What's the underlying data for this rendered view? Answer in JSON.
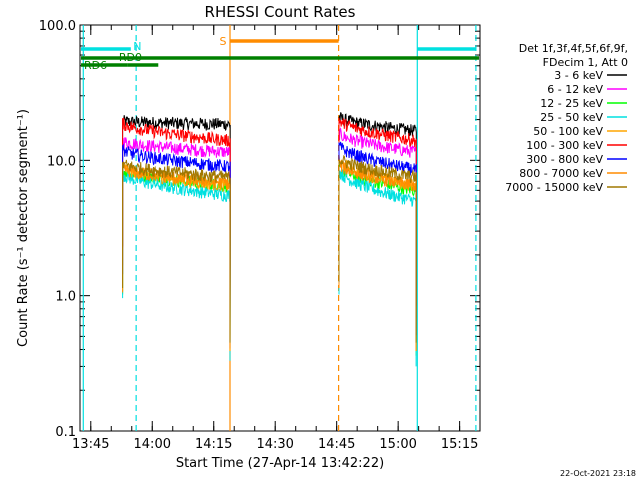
{
  "chart_data": {
    "type": "line",
    "title": "RHESSI Count Rates",
    "xlabel": "Start Time (27-Apr-14 13:42:22)",
    "ylabel": "Count Rate (s⁻¹ detector segment⁻¹)",
    "x_unit": "minutes after 13:42:22",
    "xlim": [
      0,
      97.6
    ],
    "ylim": [
      0.1,
      100
    ],
    "y_scale": "log",
    "x_ticks": [
      {
        "label": "13:45",
        "value": 2.63
      },
      {
        "label": "14:00",
        "value": 17.63
      },
      {
        "label": "14:15",
        "value": 32.63
      },
      {
        "label": "14:30",
        "value": 47.63
      },
      {
        "label": "14:45",
        "value": 62.63
      },
      {
        "label": "15:00",
        "value": 77.63
      },
      {
        "label": "15:15",
        "value": 92.63
      }
    ],
    "y_ticks": [
      {
        "label": "0.1",
        "value": 0.1
      },
      {
        "label": "1.0",
        "value": 1
      },
      {
        "label": "10.0",
        "value": 10
      },
      {
        "label": "100.0",
        "value": 100
      }
    ],
    "legend_header": [
      "Det 1f,3f,4f,5f,6f,9f,",
      "FDecim 1, Att 0"
    ],
    "legend_placement": "right",
    "series": [
      {
        "name": "3 - 6 keV",
        "color": "#000000",
        "seg1": [
          19.5,
          18.5
        ],
        "seg2": [
          21.0,
          16.5
        ]
      },
      {
        "name": "6 - 12 keV",
        "color": "#ff00ff",
        "seg1": [
          14.0,
          11.5
        ],
        "seg2": [
          16.0,
          11.5
        ]
      },
      {
        "name": "12 - 25 keV",
        "color": "#00ff00",
        "seg1": [
          8.5,
          6.5
        ],
        "seg2": [
          9.0,
          6.0
        ]
      },
      {
        "name": "25 - 50 keV",
        "color": "#00e0e0",
        "seg1": [
          8.0,
          5.5
        ],
        "seg2": [
          8.5,
          5.0
        ]
      },
      {
        "name": "50 - 100 keV",
        "color": "#ffa500",
        "seg1": [
          9.0,
          6.5
        ],
        "seg2": [
          10.0,
          6.5
        ]
      },
      {
        "name": "100 - 300 keV",
        "color": "#ff0000",
        "seg1": [
          19.0,
          14.0
        ],
        "seg2": [
          20.0,
          14.0
        ]
      },
      {
        "name": "300 - 800 keV",
        "color": "#0000ff",
        "seg1": [
          12.0,
          9.0
        ],
        "seg2": [
          13.0,
          8.5
        ]
      },
      {
        "name": "800 - 7000 keV",
        "color": "#ff8c00",
        "seg1": [
          8.8,
          6.8
        ],
        "seg2": [
          9.5,
          6.5
        ]
      },
      {
        "name": "7000 - 15000 keV",
        "color": "#a07800",
        "seg1": [
          9.5,
          7.5
        ],
        "seg2": [
          10.5,
          7.5
        ]
      }
    ],
    "segments": [
      [
        10.4,
        36.6
      ],
      [
        63.2,
        82.0
      ]
    ],
    "segment_start_min": 0.13,
    "vertical_markers": [
      {
        "x": 0.8,
        "color": "#00e0e0",
        "style": "solid"
      },
      {
        "x": 13.7,
        "color": "#00e0e0",
        "style": "dashed"
      },
      {
        "x": 36.6,
        "color": "#ff8c00",
        "style": "solid"
      },
      {
        "x": 63.1,
        "color": "#ff8c00",
        "style": "dashed"
      },
      {
        "x": 82.3,
        "color": "#00e0e0",
        "style": "solid"
      },
      {
        "x": 96.6,
        "color": "#00e0e0",
        "style": "dashed"
      }
    ],
    "flags": [
      {
        "label": "N",
        "color": "#00e0e0",
        "label_x": 14.0,
        "ranges": [
          [
            0,
            12.4
          ],
          [
            82.3,
            96.6
          ]
        ],
        "level": "top"
      },
      {
        "label": "RD0",
        "color": "#008000",
        "label_x": 12.3,
        "ranges": [
          [
            0,
            97.6
          ]
        ],
        "level": "mid"
      },
      {
        "label": "RD6",
        "color": "#008000",
        "label_x": 3.8,
        "ranges": [
          [
            0,
            11.5
          ],
          [
            11.5,
            19.1
          ]
        ],
        "level": "low"
      },
      {
        "label": "S",
        "color": "#ff8c00",
        "label_x": 34.9,
        "ranges": [
          [
            36.6,
            63.1
          ]
        ],
        "level": "high"
      }
    ],
    "timestamp": "22-Oct-2021 23:18"
  }
}
